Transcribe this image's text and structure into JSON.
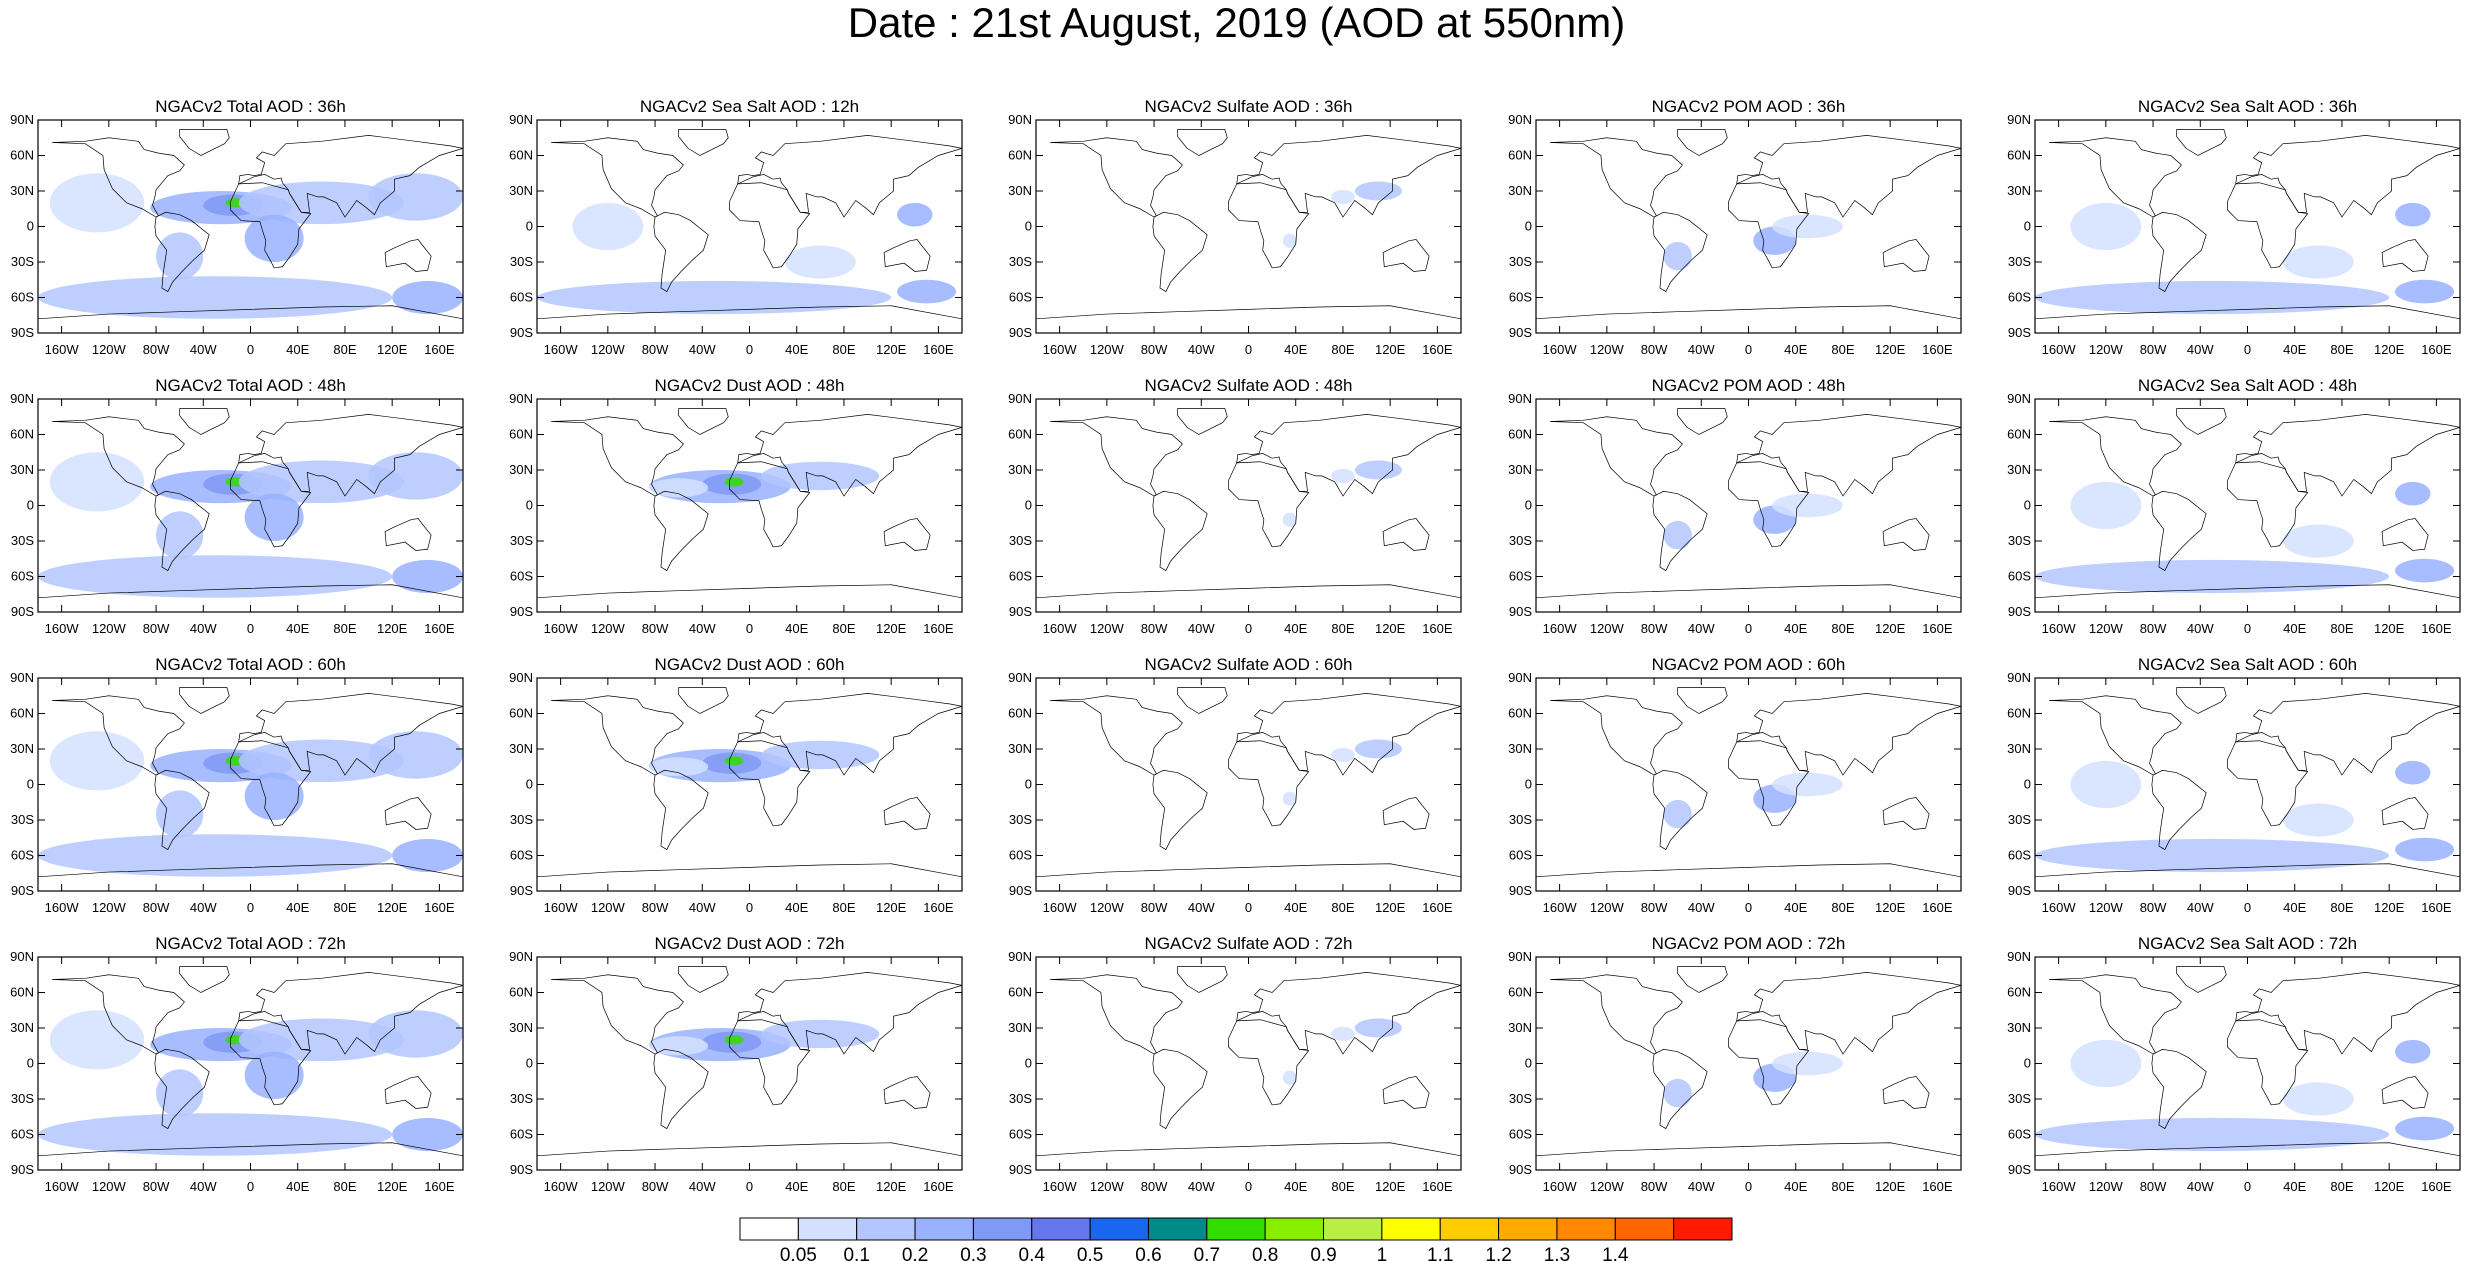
{
  "title": "Date : 21st August, 2019 (AOD at 550nm)",
  "lat_ticks": [
    "90N",
    "60N",
    "30N",
    "0",
    "30S",
    "60S",
    "90S"
  ],
  "lon_ticks": [
    "160W",
    "120W",
    "80W",
    "40W",
    "0",
    "40E",
    "80E",
    "120E",
    "160E"
  ],
  "panels": [
    [
      "NGACv2 Total AOD : 36h",
      "NGACv2 Sea Salt  AOD : 12h",
      "NGACv2 Sulfate AOD : 36h",
      "NGACv2 POM AOD : 36h",
      "NGACv2 Sea Salt AOD : 36h"
    ],
    [
      "NGACv2 Total AOD : 48h",
      "NGACv2 Dust AOD : 48h",
      "NGACv2 Sulfate AOD : 48h",
      "NGACv2 POM AOD : 48h",
      "NGACv2 Sea Salt AOD : 48h"
    ],
    [
      "NGACv2 Total AOD : 60h",
      "NGACv2 Dust AOD : 60h",
      "NGACv2 Sulfate AOD : 60h",
      "NGACv2 POM AOD : 60h",
      "NGACv2 Sea Salt AOD : 60h"
    ],
    [
      "NGACv2 Total AOD : 72h",
      "NGACv2 Dust AOD : 72h",
      "NGACv2 Sulfate AOD : 72h",
      "NGACv2 POM AOD : 72h",
      "NGACv2 Sea Salt  AOD : 72h"
    ]
  ],
  "colorbar": {
    "colors": [
      "#ffffff",
      "#d4e0ff",
      "#b3c6ff",
      "#99b2ff",
      "#8099f5",
      "#6677ee",
      "#1a66ee",
      "#008a8a",
      "#33dd00",
      "#88ee00",
      "#bbee44",
      "#ffff00",
      "#ffcc00",
      "#ffaa00",
      "#ff8800",
      "#ff6600",
      "#ff1a00"
    ],
    "labels": [
      "0.05",
      "0.1",
      "0.2",
      "0.3",
      "0.4",
      "0.5",
      "0.6",
      "0.7",
      "0.8",
      "0.9",
      "1",
      "1.1",
      "1.2",
      "1.3",
      "1.4"
    ]
  }
}
